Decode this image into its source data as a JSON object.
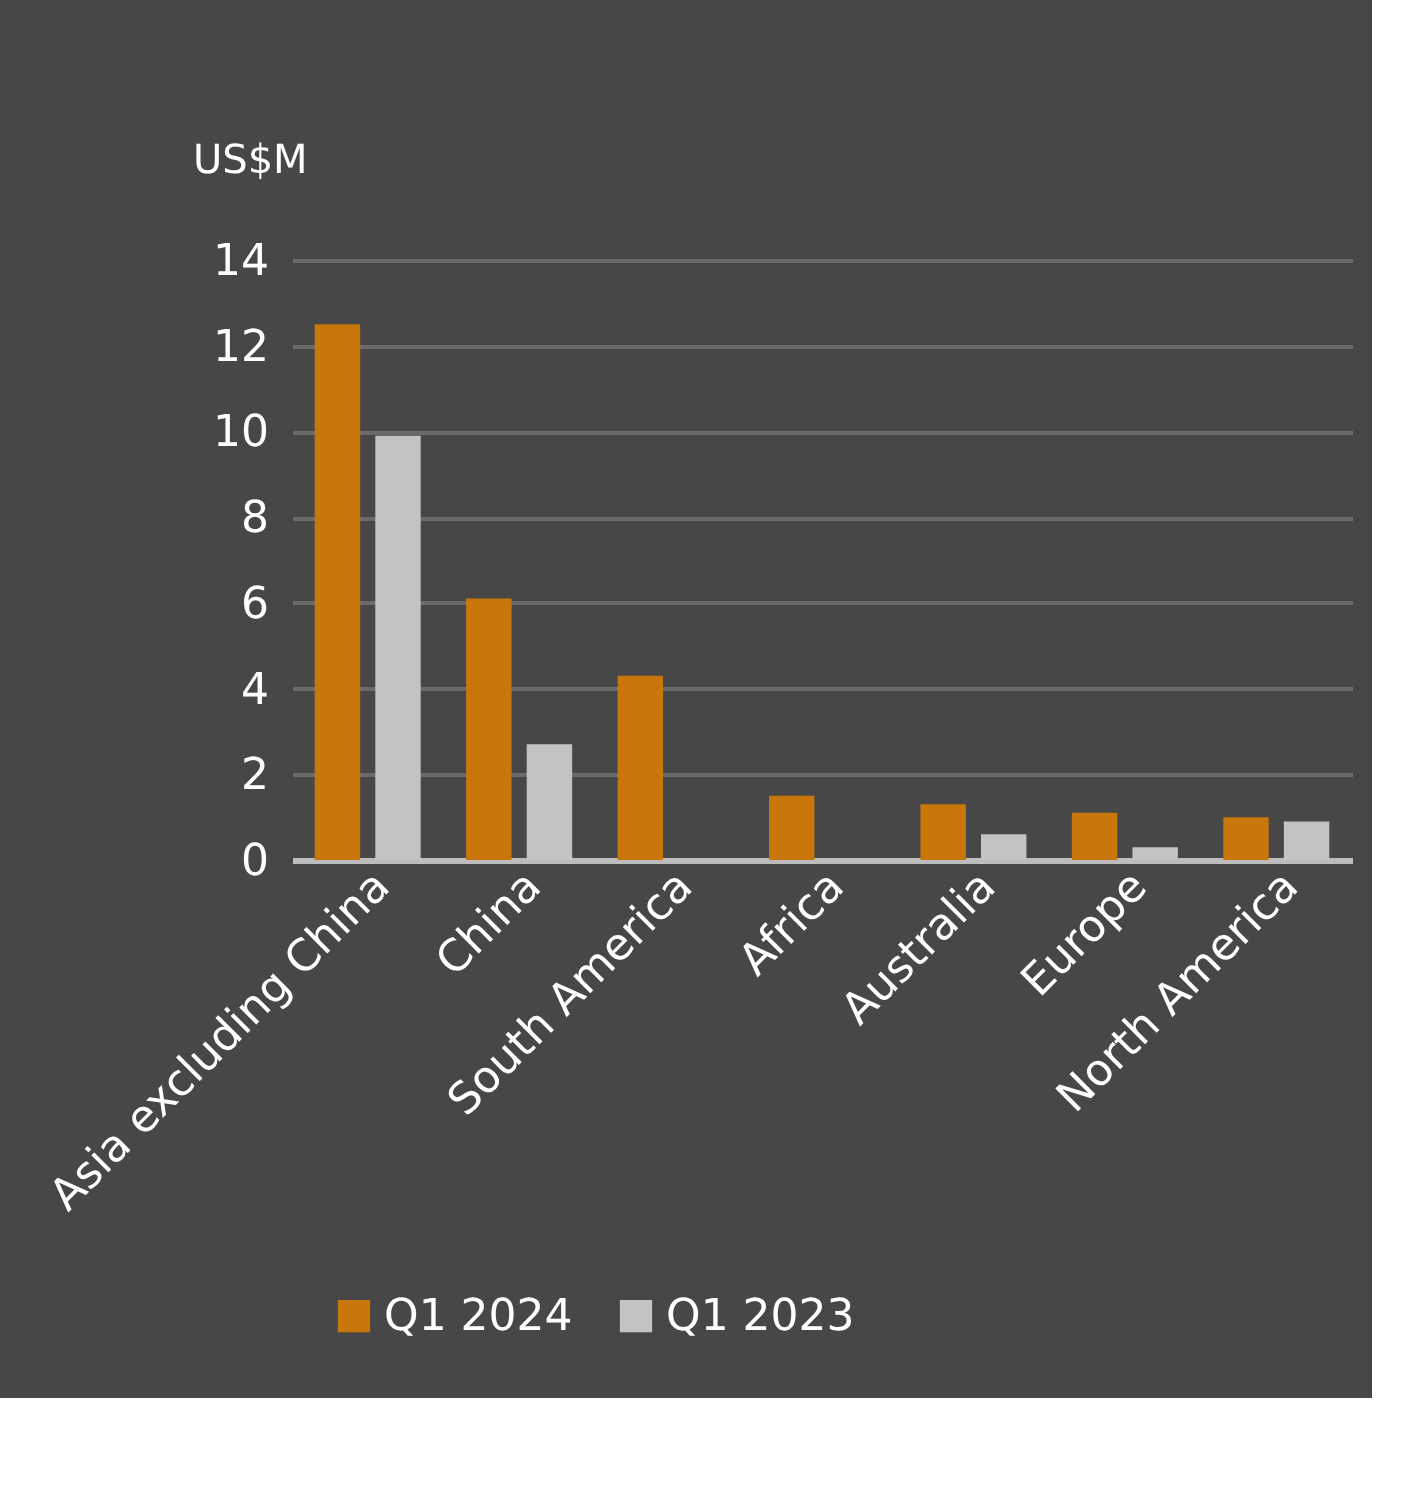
{
  "chart_data": {
    "type": "bar",
    "ylabel": "US$M",
    "categories": [
      "Asia excluding China",
      "China",
      "South America",
      "Africa",
      "Australia",
      "Europe",
      "North America"
    ],
    "series": [
      {
        "name": "Q1 2024",
        "color": "#c9770a",
        "values": [
          12.5,
          6.1,
          4.3,
          1.5,
          1.3,
          1.1,
          1.0
        ]
      },
      {
        "name": "Q1 2023",
        "color": "#c3c3c3",
        "values": [
          9.9,
          2.7,
          null,
          null,
          0.6,
          0.3,
          0.9
        ]
      }
    ],
    "ylim": [
      0,
      14
    ],
    "yticks": [
      0,
      2,
      4,
      6,
      8,
      10,
      12,
      14
    ],
    "grid": "y",
    "legend": "bottom"
  }
}
